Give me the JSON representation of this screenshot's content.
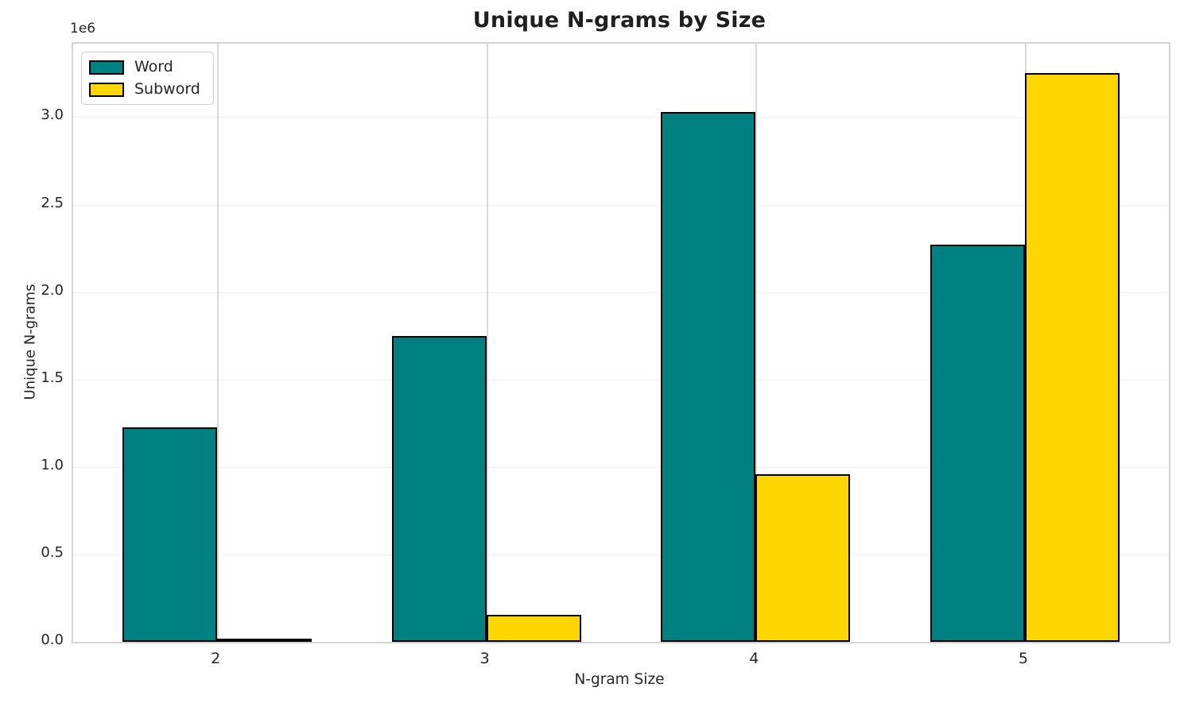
{
  "chart_data": {
    "type": "bar",
    "title": "Unique N-grams by Size",
    "xlabel": "N-gram Size",
    "ylabel": "Unique N-grams",
    "offset_text": "1e6",
    "categories": [
      "2",
      "3",
      "4",
      "5"
    ],
    "series": [
      {
        "name": "Word",
        "color": "#008080",
        "values": [
          1225000,
          1750000,
          3030000,
          2270000
        ]
      },
      {
        "name": "Subword",
        "color": "#FFD700",
        "values": [
          18000,
          155000,
          960000,
          3250000
        ]
      }
    ],
    "ylim": [
      0,
      3420000
    ],
    "yticks": [
      0,
      500000,
      1000000,
      1500000,
      2000000,
      2500000,
      3000000
    ],
    "ytick_labels": [
      "0.0",
      "0.5",
      "1.0",
      "1.5",
      "2.0",
      "2.5",
      "3.0"
    ],
    "grid": true,
    "legend_position": "upper left",
    "bar_edge_color": "#000000",
    "background_color": "#ffffff"
  }
}
